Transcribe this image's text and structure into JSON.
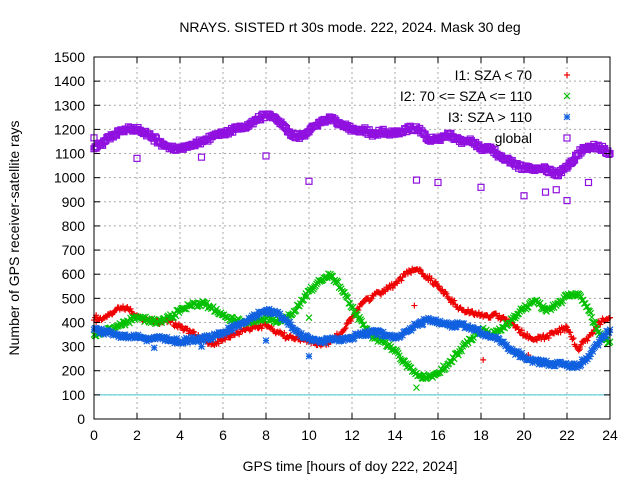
{
  "chart_data": {
    "type": "scatter",
    "title": "NRAYS. SISTED rt 30s mode. 222, 2024. Mask 30 deg",
    "xlabel": "GPS time [hours of doy 222, 2024]",
    "ylabel": "Number of GPS receiver-satellite rays",
    "xlim": [
      0,
      24
    ],
    "ylim": [
      0,
      1500
    ],
    "xticks": [
      0,
      2,
      4,
      6,
      8,
      10,
      12,
      14,
      16,
      18,
      20,
      22,
      24
    ],
    "yticks": [
      0,
      100,
      200,
      300,
      400,
      500,
      600,
      700,
      800,
      900,
      1000,
      1100,
      1200,
      1300,
      1400,
      1500
    ],
    "grid": true,
    "legend_position": "top-right",
    "threshold_line": {
      "y": 100,
      "color": "#40c8d8"
    },
    "series": [
      {
        "name": "I1: SZA < 70",
        "marker": "+",
        "color": "#ee0000",
        "x": [
          0,
          0.5,
          1,
          1.5,
          2,
          2.5,
          3,
          3.5,
          4,
          4.5,
          5,
          5.5,
          6,
          6.5,
          7,
          7.5,
          8,
          8.5,
          9,
          9.5,
          10,
          10.5,
          11,
          11.5,
          12,
          12.5,
          13,
          13.5,
          14,
          14.5,
          15,
          15.5,
          16,
          16.5,
          17,
          17.5,
          18,
          18.5,
          19,
          19.5,
          20,
          20.5,
          21,
          21.5,
          22,
          22.5,
          23,
          23.5,
          24
        ],
        "y": [
          410,
          420,
          450,
          460,
          430,
          410,
          400,
          410,
          380,
          360,
          330,
          310,
          330,
          350,
          370,
          380,
          390,
          360,
          340,
          330,
          320,
          310,
          320,
          360,
          420,
          480,
          510,
          530,
          560,
          600,
          620,
          590,
          550,
          500,
          460,
          440,
          430,
          430,
          420,
          390,
          350,
          330,
          340,
          360,
          380,
          290,
          340,
          400,
          420
        ],
        "outliers": [
          [
            0.1,
            430
          ],
          [
            14.9,
            470
          ],
          [
            18.1,
            245
          ],
          [
            20.2,
            265
          ],
          [
            22.6,
            290
          ]
        ]
      },
      {
        "name": "I2: 70 <= SZA <= 110",
        "marker": "x",
        "color": "#00c000",
        "x": [
          0,
          0.5,
          1,
          1.5,
          2,
          2.5,
          3,
          3.5,
          4,
          4.5,
          5,
          5.5,
          6,
          6.5,
          7,
          7.5,
          8,
          8.5,
          9,
          9.5,
          10,
          10.5,
          11,
          11.5,
          12,
          12.5,
          13,
          13.5,
          14,
          14.5,
          15,
          15.5,
          16,
          16.5,
          17,
          17.5,
          18,
          18.5,
          19,
          19.5,
          20,
          20.5,
          21,
          21.5,
          22,
          22.5,
          23,
          23.5,
          24
        ],
        "y": [
          350,
          365,
          380,
          400,
          420,
          410,
          400,
          420,
          450,
          470,
          480,
          460,
          430,
          410,
          400,
          410,
          420,
          400,
          420,
          470,
          530,
          570,
          600,
          540,
          460,
          390,
          340,
          320,
          280,
          230,
          190,
          170,
          190,
          230,
          280,
          330,
          370,
          350,
          380,
          420,
          460,
          490,
          450,
          470,
          510,
          520,
          450,
          350,
          320
        ],
        "outliers": [
          [
            15,
            130
          ],
          [
            10,
            420
          ]
        ]
      },
      {
        "name": "I3: SZA > 110",
        "marker": "*",
        "color": "#1060e0",
        "x": [
          0,
          0.5,
          1,
          1.5,
          2,
          2.5,
          3,
          3.5,
          4,
          4.5,
          5,
          5.5,
          6,
          6.5,
          7,
          7.5,
          8,
          8.5,
          9,
          9.5,
          10,
          10.5,
          11,
          11.5,
          12,
          12.5,
          13,
          13.5,
          14,
          14.5,
          15,
          15.5,
          16,
          16.5,
          17,
          17.5,
          18,
          18.5,
          19,
          19.5,
          20,
          20.5,
          21,
          21.5,
          22,
          22.5,
          23,
          23.5,
          24
        ],
        "y": [
          370,
          360,
          350,
          340,
          340,
          330,
          340,
          330,
          320,
          330,
          330,
          340,
          360,
          380,
          400,
          430,
          450,
          440,
          400,
          360,
          330,
          320,
          330,
          330,
          340,
          350,
          360,
          350,
          340,
          360,
          390,
          410,
          400,
          390,
          390,
          380,
          360,
          340,
          320,
          280,
          260,
          240,
          230,
          230,
          220,
          220,
          260,
          320,
          370
        ],
        "outliers": [
          [
            2.8,
            295
          ],
          [
            5,
            300
          ],
          [
            8,
            325
          ],
          [
            10,
            260
          ]
        ]
      },
      {
        "name": "global",
        "marker": "square",
        "color": "#9010e0",
        "x": [
          0,
          0.5,
          1,
          1.5,
          2,
          2.5,
          3,
          3.5,
          4,
          4.5,
          5,
          5.5,
          6,
          6.5,
          7,
          7.5,
          8,
          8.5,
          9,
          9.5,
          10,
          10.5,
          11,
          11.5,
          12,
          12.5,
          13,
          13.5,
          14,
          14.5,
          15,
          15.5,
          16,
          16.5,
          17,
          17.5,
          18,
          18.5,
          19,
          19.5,
          20,
          20.5,
          21,
          21.5,
          22,
          22.5,
          23,
          23.5,
          24
        ],
        "y": [
          1120,
          1150,
          1180,
          1200,
          1200,
          1180,
          1150,
          1120,
          1120,
          1130,
          1150,
          1170,
          1180,
          1200,
          1210,
          1240,
          1260,
          1240,
          1190,
          1170,
          1190,
          1230,
          1250,
          1220,
          1200,
          1200,
          1180,
          1190,
          1180,
          1200,
          1210,
          1160,
          1160,
          1180,
          1150,
          1160,
          1120,
          1120,
          1080,
          1060,
          1040,
          1030,
          1040,
          1010,
          1040,
          1100,
          1130,
          1130,
          1100
        ],
        "outliers": [
          [
            0,
            1165
          ],
          [
            2,
            1080
          ],
          [
            5,
            1085
          ],
          [
            8,
            1090
          ],
          [
            10,
            985
          ],
          [
            15,
            990
          ],
          [
            16,
            980
          ],
          [
            18,
            960
          ],
          [
            20,
            925
          ],
          [
            21.5,
            950
          ],
          [
            22,
            905
          ],
          [
            23,
            980
          ],
          [
            22.2,
            1060
          ],
          [
            21,
            940
          ]
        ]
      }
    ]
  }
}
